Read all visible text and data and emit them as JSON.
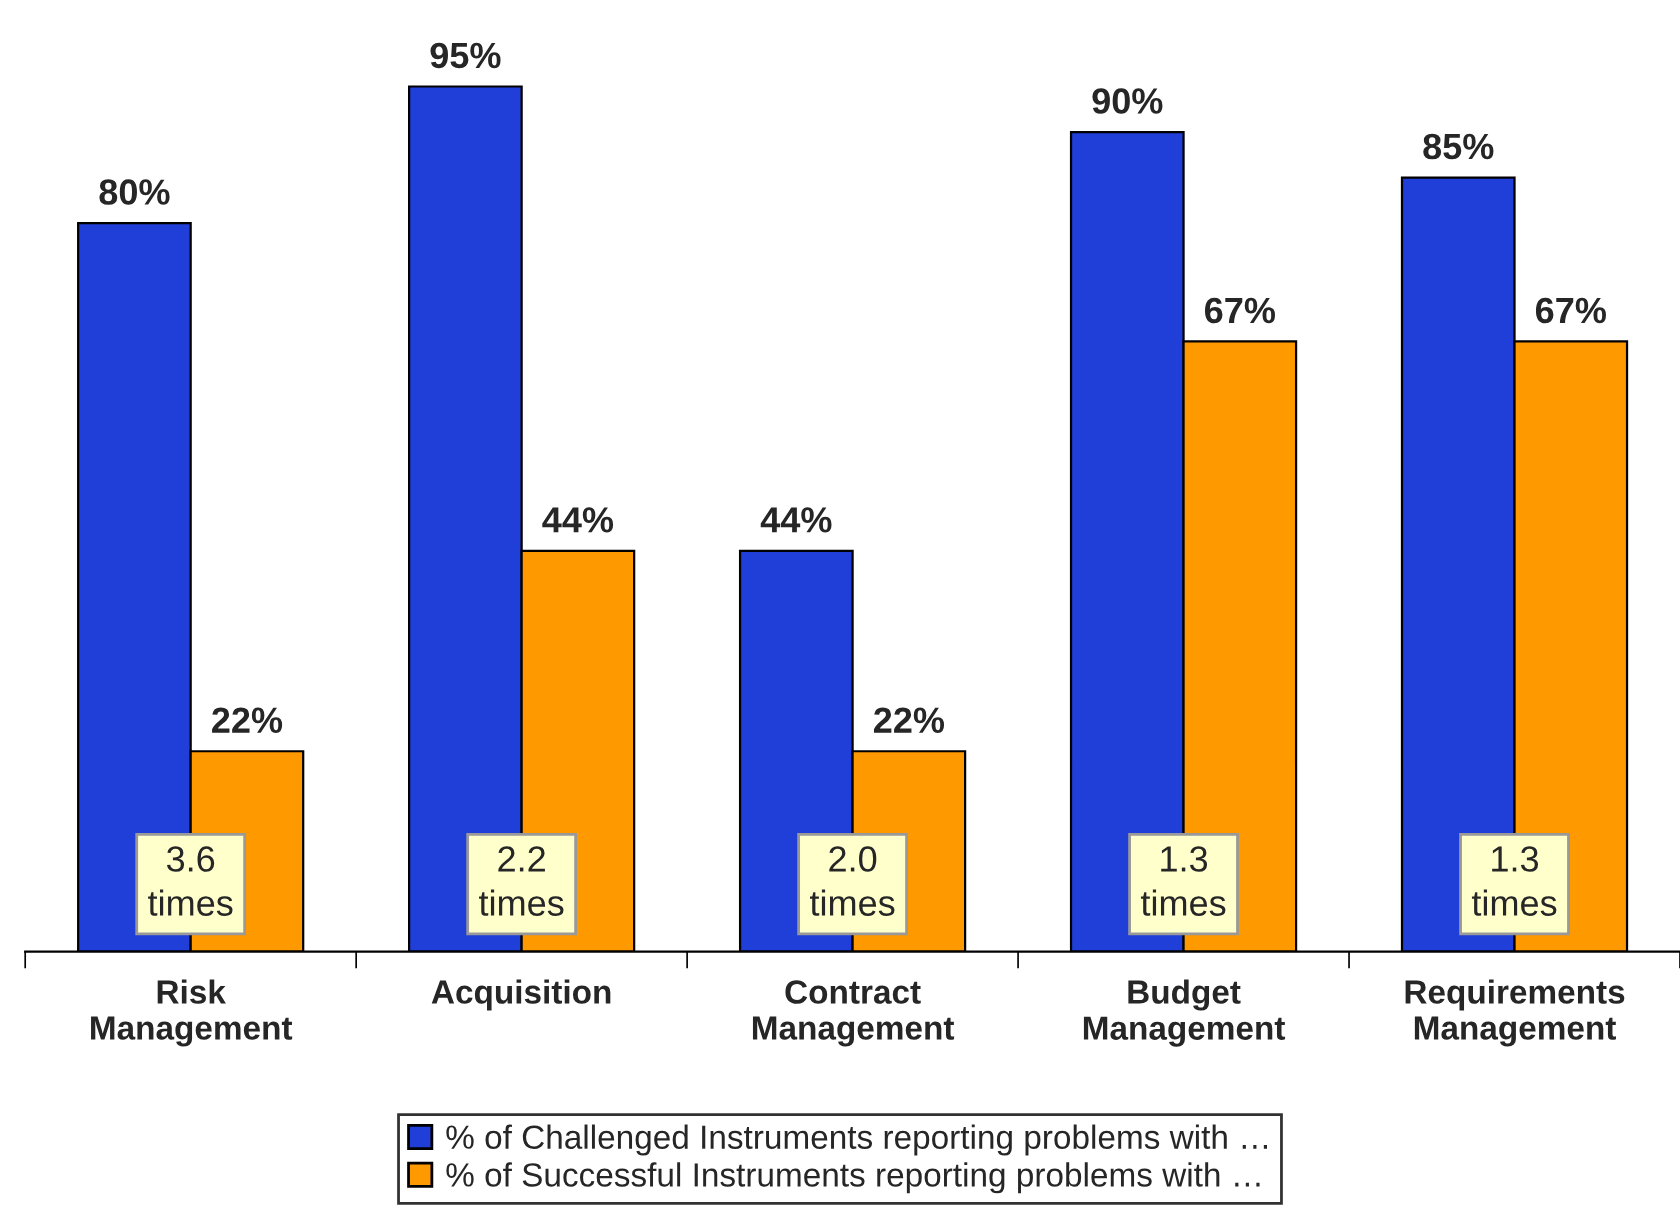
{
  "chart_data": {
    "type": "bar",
    "categories": [
      "Risk\nManagement",
      "Acquisition",
      "Contract\nManagement",
      "Budget\nManagement",
      "Requirements\nManagement"
    ],
    "series": [
      {
        "name": "% of Challenged Instruments reporting problems with …",
        "color": "#1f3fd8",
        "values": [
          80,
          95,
          44,
          90,
          85
        ],
        "value_labels": [
          "80%",
          "95%",
          "44%",
          "90%",
          "85%"
        ]
      },
      {
        "name": "% of Successful Instruments reporting problems with …",
        "color": "#ff9900",
        "values": [
          22,
          44,
          22,
          67,
          67
        ],
        "value_labels": [
          "22%",
          "44%",
          "22%",
          "67%",
          "67%"
        ]
      }
    ],
    "annotations": [
      {
        "text": "3.6\ntimes",
        "x": "Risk\nManagement"
      },
      {
        "text": "2.2\ntimes",
        "x": "Acquisition"
      },
      {
        "text": "2.0\ntimes",
        "x": "Contract\nManagement"
      },
      {
        "text": "1.3\ntimes",
        "x": "Budget\nManagement"
      },
      {
        "text": "1.3\ntimes",
        "x": "Requirements\nManagement"
      }
    ],
    "legend": "bottom",
    "grid": false
  }
}
